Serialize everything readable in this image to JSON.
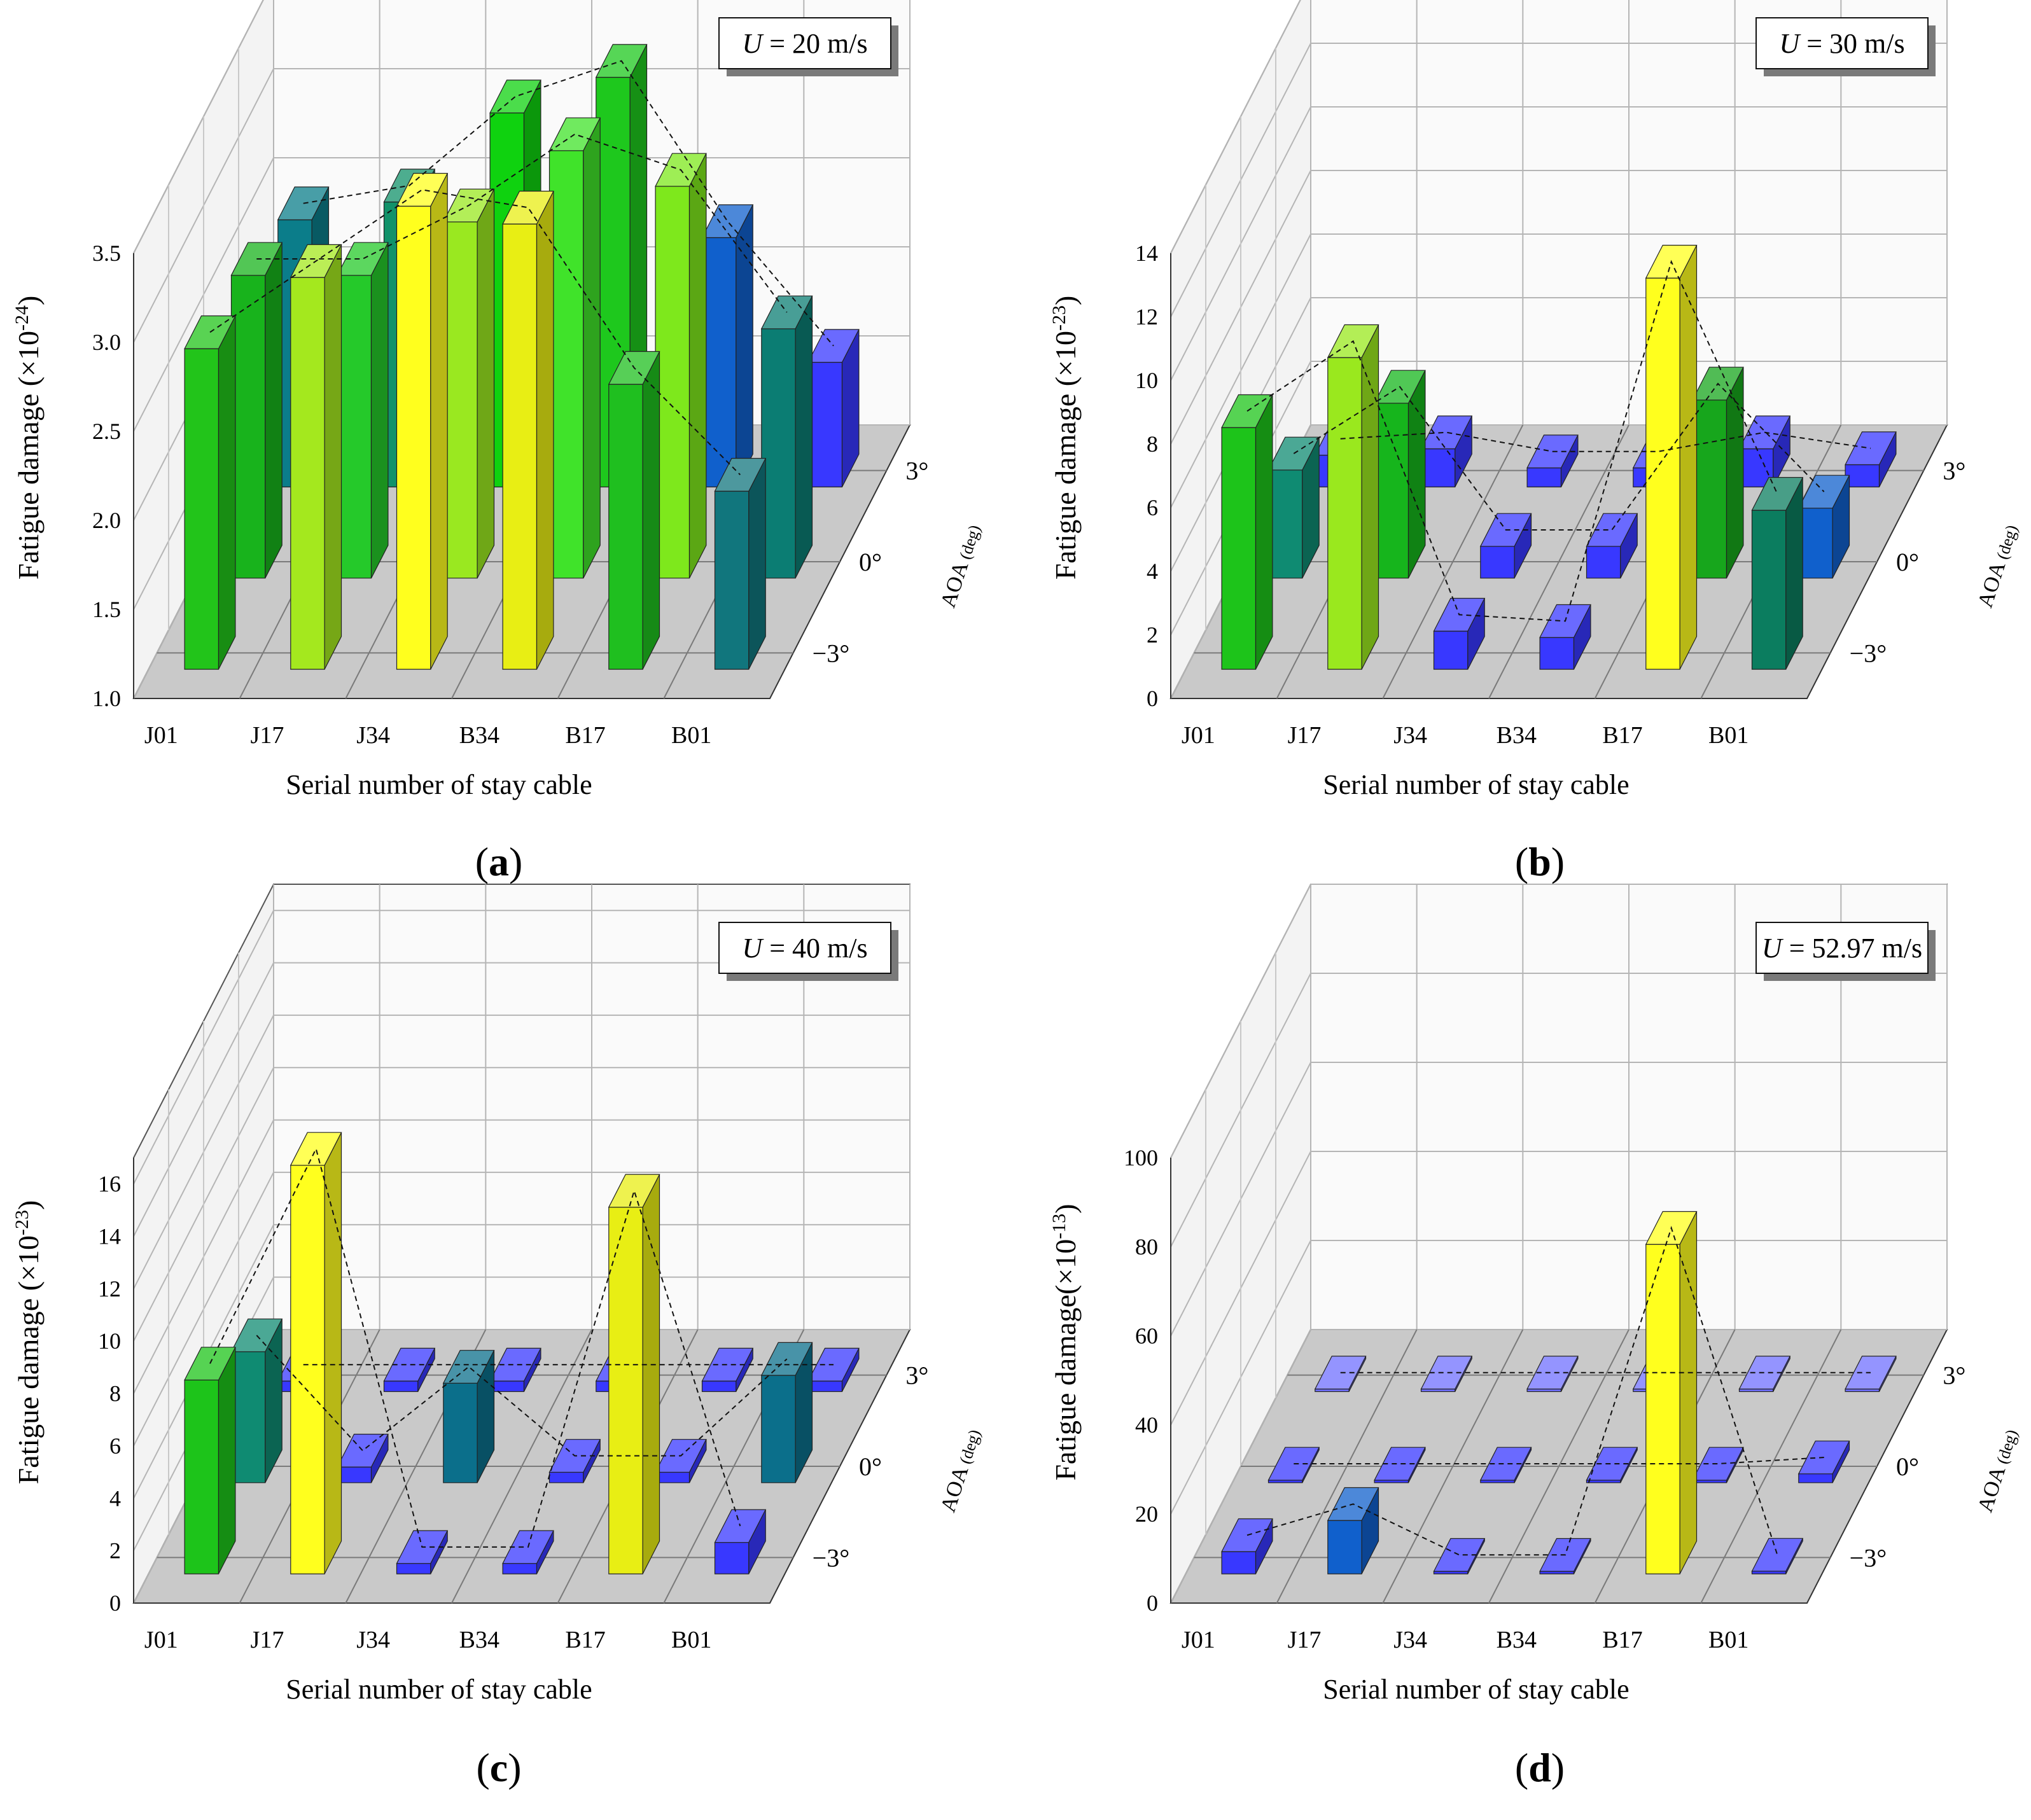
{
  "figure": {
    "panel_labels": [
      "a",
      "b",
      "c",
      "d"
    ]
  },
  "chart_data": [
    {
      "type": "bar",
      "subtype": "bar3d",
      "panel": "a",
      "annotation": "U = 20 m/s",
      "annotation_u": "U",
      "annotation_rest": " = 20 m/s",
      "title": "",
      "xlabel": "Serial number of stay cable",
      "ylabel": "Fatigue damage (×10",
      "ylabel_exp": "-24",
      "ylabel_close": ")",
      "zlabel": "AOA",
      "zlabel_unit": "(deg)",
      "categories": [
        "J01",
        "J17",
        "J34",
        "B34",
        "B17",
        "B01"
      ],
      "depth_labels": [
        "−3°",
        "0°",
        "3°"
      ],
      "ylim": [
        1.0,
        3.5
      ],
      "yticks": [
        "1.0",
        "1.5",
        "2.0",
        "2.5",
        "3.0",
        "3.5"
      ],
      "series": [
        {
          "name": "−3°",
          "values": [
            2.8,
            3.2,
            3.6,
            3.5,
            2.6,
            2.0
          ],
          "colors": [
            "#22c41a",
            "#a4e81e",
            "#ffff1e",
            "#e8ee14",
            "#1fbf1f",
            "#11767d"
          ]
        },
        {
          "name": "0°",
          "values": [
            2.7,
            2.7,
            3.0,
            3.4,
            3.2,
            2.4
          ],
          "colors": [
            "#18b31c",
            "#25c92a",
            "#9ae820",
            "#40e32a",
            "#7ee81c",
            "#0b7d73"
          ]
        },
        {
          "name": "3°",
          "values": [
            2.5,
            2.6,
            3.1,
            3.3,
            2.4,
            1.7
          ],
          "colors": [
            "#0b7d8a",
            "#12926a",
            "#0fd20f",
            "#1ec81d",
            "#1060cc",
            "#3838ff"
          ]
        }
      ]
    },
    {
      "type": "bar",
      "subtype": "bar3d",
      "panel": "b",
      "annotation": "U = 30 m/s",
      "annotation_u": "U",
      "annotation_rest": " = 30 m/s",
      "title": "",
      "xlabel": "Serial number of stay cable",
      "ylabel": "Fatigue damage (×10",
      "ylabel_exp": "-23",
      "ylabel_close": ")",
      "zlabel": "AOA",
      "zlabel_unit": "(deg)",
      "categories": [
        "J01",
        "J17",
        "J34",
        "B34",
        "B17",
        "B01"
      ],
      "depth_labels": [
        "−3°",
        "0°",
        "3°"
      ],
      "ylim": [
        0,
        14
      ],
      "yticks": [
        "0",
        "2",
        "4",
        "6",
        "8",
        "10",
        "12",
        "14"
      ],
      "series": [
        {
          "name": "−3°",
          "values": [
            7.6,
            9.8,
            1.2,
            1.0,
            12.3,
            5.0
          ],
          "colors": [
            "#1dc41a",
            "#9ae81e",
            "#3838ff",
            "#3838ff",
            "#ffff1e",
            "#0b7d5f"
          ]
        },
        {
          "name": "0°",
          "values": [
            3.4,
            5.5,
            1.0,
            1.0,
            5.6,
            2.2
          ],
          "colors": [
            "#0f8b72",
            "#16b51c",
            "#3838ff",
            "#3838ff",
            "#17a61c",
            "#1060cc"
          ]
        },
        {
          "name": "3°",
          "values": [
            1.0,
            1.2,
            0.6,
            0.6,
            1.2,
            0.7
          ],
          "colors": [
            "#3838ff",
            "#3838ff",
            "#3838ff",
            "#3838ff",
            "#3838ff",
            "#3838ff"
          ]
        }
      ]
    },
    {
      "type": "bar",
      "subtype": "bar3d",
      "panel": "c",
      "annotation": "U = 40 m/s",
      "annotation_u": "U",
      "annotation_rest": " = 40 m/s",
      "title": "",
      "xlabel": "Serial number of stay cable",
      "ylabel": "Fatigue damage (×10",
      "ylabel_exp": "-23",
      "ylabel_close": ")",
      "zlabel": "AOA",
      "zlabel_unit": "(deg)",
      "categories": [
        "J01",
        "J17",
        "J34",
        "B34",
        "B17",
        "B01"
      ],
      "depth_labels": [
        "−3°",
        "0°",
        "3°"
      ],
      "ylim": [
        0,
        17
      ],
      "yticks": [
        "0",
        "2",
        "4",
        "6",
        "8",
        "10",
        "12",
        "14",
        "16"
      ],
      "series": [
        {
          "name": "−3°",
          "values": [
            7.4,
            15.6,
            0.4,
            0.4,
            14.0,
            1.2
          ],
          "colors": [
            "#1dc41a",
            "#ffff1e",
            "#3838ff",
            "#3838ff",
            "#e8ee14",
            "#3838ff"
          ]
        },
        {
          "name": "0°",
          "values": [
            5.0,
            0.6,
            3.8,
            0.4,
            0.4,
            4.1
          ],
          "colors": [
            "#0f8b72",
            "#3838ff",
            "#0b6f8b",
            "#3838ff",
            "#3838ff",
            "#0b6f8b"
          ]
        },
        {
          "name": "3°",
          "values": [
            0.4,
            0.4,
            0.4,
            0.4,
            0.4,
            0.4
          ],
          "colors": [
            "#3838ff",
            "#3838ff",
            "#3838ff",
            "#3838ff",
            "#3838ff",
            "#3838ff"
          ]
        }
      ]
    },
    {
      "type": "bar",
      "subtype": "bar3d",
      "panel": "d",
      "annotation": "U = 52.97 m/s",
      "annotation_u": "U",
      "annotation_rest": " = 52.97 m/s",
      "title": "",
      "xlabel": "Serial number of stay cable",
      "ylabel": "Fatigue damage(×10",
      "ylabel_exp": "-13",
      "ylabel_close": ")",
      "zlabel": "AOA",
      "zlabel_unit": "(deg)",
      "categories": [
        "J01",
        "J17",
        "J34",
        "B34",
        "B17",
        "B01"
      ],
      "depth_labels": [
        "−3°",
        "0°",
        "3°"
      ],
      "ylim": [
        0,
        100
      ],
      "yticks": [
        "0",
        "20",
        "40",
        "60",
        "80",
        "100"
      ],
      "series": [
        {
          "name": "−3°",
          "values": [
            5.0,
            12.0,
            0.5,
            0.5,
            74.0,
            0.6
          ],
          "colors": [
            "#3838ff",
            "#1060cc",
            "#3838ff",
            "#3838ff",
            "#ffff1e",
            "#3838ff"
          ]
        },
        {
          "name": "0°",
          "values": [
            0.4,
            0.5,
            0.4,
            0.4,
            0.4,
            2.0
          ],
          "colors": [
            "#3838ff",
            "#3838ff",
            "#3838ff",
            "#3838ff",
            "#3838ff",
            "#3838ff"
          ]
        },
        {
          "name": "3°",
          "values": [
            0.3,
            0.3,
            0.3,
            0.3,
            0.3,
            0.3
          ],
          "colors": [
            "#7070ff",
            "#7070ff",
            "#7070ff",
            "#7070ff",
            "#7070ff",
            "#7070ff"
          ]
        }
      ]
    }
  ]
}
